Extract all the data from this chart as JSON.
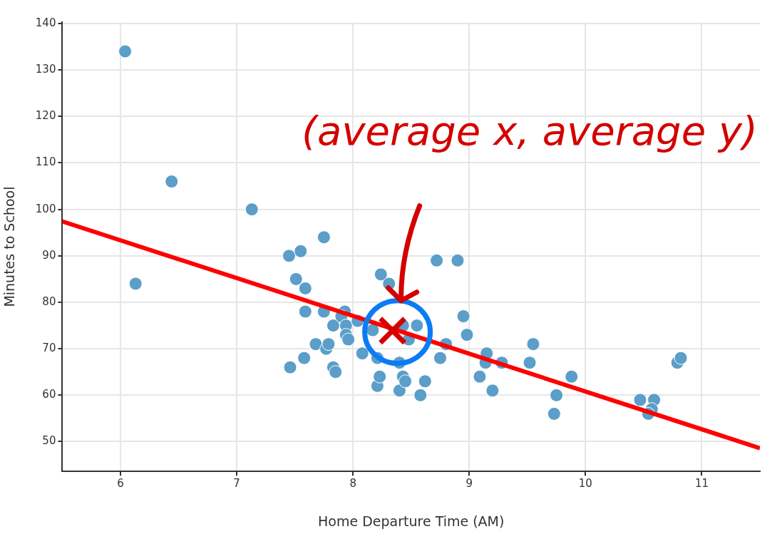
{
  "chart_data": {
    "type": "scatter",
    "xlabel": "Home Departure Time (AM)",
    "ylabel": "Minutes to School",
    "xlim": [
      5.5,
      11.5
    ],
    "xticks": [
      6,
      7,
      8,
      9,
      10,
      11
    ],
    "ylim": [
      43.6,
      140.3
    ],
    "yticks": [
      50,
      60,
      70,
      80,
      90,
      100,
      110,
      120,
      130,
      140
    ],
    "grid": true,
    "legend": false,
    "annotations": [
      "(average x, average y)"
    ],
    "series": [
      {
        "marker": "circle",
        "color": "#5b9ec9",
        "x": [
          6.04,
          6.13,
          6.44,
          7.13,
          7.75,
          7.45,
          7.55,
          7.51,
          7.59,
          7.59,
          7.75,
          7.46,
          7.58,
          7.68,
          7.77,
          7.79,
          7.83,
          7.83,
          7.85,
          7.93,
          7.9,
          7.94,
          7.94,
          7.96,
          8.04,
          8.08,
          8.17,
          8.21,
          8.21,
          8.23,
          8.24,
          8.31,
          8.4,
          8.4,
          8.43,
          8.43,
          8.45,
          8.48,
          8.55,
          8.58,
          8.62,
          8.72,
          8.75,
          8.8,
          8.9,
          8.95,
          8.98,
          9.09,
          9.14,
          9.15,
          9.2,
          9.28,
          9.52,
          9.55,
          9.75,
          9.73,
          9.88,
          10.47,
          10.59,
          10.57,
          10.54,
          10.79,
          10.82
        ],
        "values": [
          134,
          84,
          106,
          100,
          94,
          90,
          91,
          85,
          83,
          78,
          78,
          66,
          68,
          71,
          70,
          71,
          75,
          66,
          65,
          78,
          77,
          75,
          73,
          72,
          76,
          69,
          74,
          68,
          62,
          64,
          86,
          84,
          67,
          61,
          75,
          64,
          63,
          72,
          75,
          60,
          63,
          89,
          68,
          71,
          89,
          77,
          73,
          64,
          67,
          69,
          61,
          67,
          67,
          71,
          60,
          56,
          64,
          59,
          59,
          57,
          56,
          67,
          68
        ]
      },
      {
        "type": "line",
        "color": "#ff0000",
        "x": [
          5.5,
          11.5
        ],
        "values": [
          97.4,
          48.6
        ],
        "marker": "none"
      },
      {
        "type": "scatter",
        "marker": "cross",
        "color": "#d40000",
        "x": [
          8.34
        ],
        "values": [
          73.9
        ]
      }
    ]
  }
}
